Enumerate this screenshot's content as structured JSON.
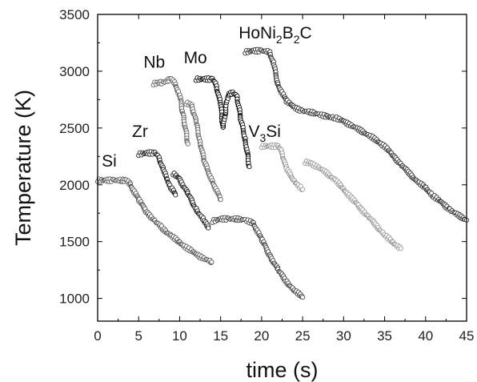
{
  "chart_data": {
    "type": "scatter",
    "title": "",
    "xlabel": "time (s)",
    "ylabel": "Temperature (K)",
    "xlim": [
      0,
      45
    ],
    "ylim": [
      800,
      3500
    ],
    "xticks": [
      "0",
      "5",
      "10",
      "15",
      "20",
      "25",
      "30",
      "35",
      "40",
      "45"
    ],
    "yticks": [
      "1000",
      "1500",
      "2000",
      "2500",
      "3000",
      "3500"
    ],
    "grid": false,
    "legend": "none",
    "marker": "open-circle",
    "annotations": [
      {
        "id": "si",
        "parts": [
          {
            "t": "Si",
            "s": false
          }
        ],
        "x": 0.5,
        "y": 2160
      },
      {
        "id": "zr",
        "parts": [
          {
            "t": "Zr",
            "s": false
          }
        ],
        "x": 4.2,
        "y": 2420
      },
      {
        "id": "nb",
        "parts": [
          {
            "t": "Nb",
            "s": false
          }
        ],
        "x": 5.6,
        "y": 3030
      },
      {
        "id": "mo",
        "parts": [
          {
            "t": "Mo",
            "s": false
          }
        ],
        "x": 10.5,
        "y": 3070
      },
      {
        "id": "honi2b2c",
        "parts": [
          {
            "t": "HoNi",
            "s": false
          },
          {
            "t": "2",
            "s": true
          },
          {
            "t": "B",
            "s": false
          },
          {
            "t": "2",
            "s": true
          },
          {
            "t": "C",
            "s": false
          }
        ],
        "x": 17.2,
        "y": 3290
      },
      {
        "id": "v3si",
        "parts": [
          {
            "t": "V",
            "s": false
          },
          {
            "t": "3",
            "s": true
          },
          {
            "t": "Si",
            "s": false
          }
        ],
        "x": 18.4,
        "y": 2420
      }
    ],
    "series": [
      {
        "color": "#555555",
        "points": [
          [
            0,
            2040
          ],
          [
            1,
            2040
          ],
          [
            2,
            2040
          ],
          [
            3,
            2040
          ],
          [
            3.5,
            2040
          ],
          [
            4,
            2000
          ],
          [
            5,
            1870
          ],
          [
            6,
            1760
          ],
          [
            7,
            1680
          ],
          [
            8,
            1610
          ],
          [
            9,
            1550
          ],
          [
            10,
            1490
          ],
          [
            11,
            1440
          ],
          [
            12,
            1390
          ],
          [
            13,
            1350
          ],
          [
            13.9,
            1320
          ]
        ]
      },
      {
        "color": "#444444",
        "points": [
          [
            14,
            1680
          ],
          [
            15,
            1700
          ],
          [
            16,
            1700
          ],
          [
            17,
            1700
          ],
          [
            18,
            1690
          ],
          [
            19,
            1660
          ],
          [
            20,
            1520
          ],
          [
            21,
            1380
          ],
          [
            22,
            1250
          ],
          [
            23,
            1150
          ],
          [
            24,
            1070
          ],
          [
            25,
            1010
          ]
        ]
      },
      {
        "color": "#222222",
        "points": [
          [
            5,
            2270
          ],
          [
            6,
            2280
          ],
          [
            7,
            2280
          ],
          [
            7.5,
            2240
          ],
          [
            8,
            2130
          ],
          [
            8.5,
            2040
          ],
          [
            9,
            1970
          ],
          [
            9.5,
            1910
          ]
        ]
      },
      {
        "color": "#222222",
        "points": [
          [
            9.2,
            2100
          ],
          [
            10,
            2050
          ],
          [
            11,
            1920
          ],
          [
            12,
            1790
          ],
          [
            13,
            1680
          ],
          [
            13.5,
            1620
          ]
        ]
      },
      {
        "color": "#666666",
        "points": [
          [
            6.8,
            2890
          ],
          [
            7.5,
            2900
          ],
          [
            8,
            2900
          ],
          [
            8.5,
            2920
          ],
          [
            9,
            2930
          ],
          [
            9.5,
            2880
          ],
          [
            10,
            2790
          ],
          [
            10.5,
            2590
          ],
          [
            11,
            2360
          ]
        ]
      },
      {
        "color": "#666666",
        "points": [
          [
            10.8,
            2720
          ],
          [
            11.5,
            2700
          ],
          [
            12,
            2550
          ],
          [
            12.5,
            2380
          ],
          [
            13,
            2200
          ],
          [
            14,
            2030
          ],
          [
            15,
            1870
          ]
        ]
      },
      {
        "color": "#111111",
        "points": [
          [
            12,
            2930
          ],
          [
            13,
            2930
          ],
          [
            14,
            2930
          ],
          [
            14.5,
            2870
          ],
          [
            15,
            2700
          ],
          [
            15.3,
            2500
          ],
          [
            15.8,
            2750
          ],
          [
            16,
            2800
          ],
          [
            16.5,
            2810
          ],
          [
            17,
            2780
          ],
          [
            17.5,
            2560
          ],
          [
            18,
            2400
          ],
          [
            18.5,
            2160
          ]
        ]
      },
      {
        "color": "#999999",
        "points": [
          [
            20,
            2340
          ],
          [
            21,
            2340
          ],
          [
            22,
            2340
          ],
          [
            22.5,
            2280
          ],
          [
            23,
            2140
          ],
          [
            24,
            2030
          ],
          [
            25,
            1960
          ]
        ]
      },
      {
        "color": "#999999",
        "points": [
          [
            25.3,
            2200
          ],
          [
            26,
            2190
          ],
          [
            27,
            2150
          ],
          [
            28,
            2100
          ],
          [
            29,
            2040
          ],
          [
            30,
            1960
          ],
          [
            31,
            1880
          ],
          [
            32,
            1800
          ],
          [
            33,
            1720
          ],
          [
            34,
            1640
          ],
          [
            35,
            1560
          ],
          [
            36,
            1490
          ],
          [
            37,
            1440
          ]
        ]
      },
      {
        "color": "#333333",
        "points": [
          [
            18,
            3170
          ],
          [
            19,
            3180
          ],
          [
            20,
            3180
          ],
          [
            21,
            3170
          ],
          [
            21.5,
            3050
          ],
          [
            22,
            2880
          ],
          [
            23,
            2740
          ],
          [
            24,
            2680
          ],
          [
            25,
            2650
          ],
          [
            26,
            2640
          ],
          [
            27,
            2620
          ],
          [
            28,
            2600
          ],
          [
            29,
            2590
          ],
          [
            30,
            2560
          ],
          [
            31,
            2520
          ],
          [
            32,
            2480
          ],
          [
            33,
            2440
          ],
          [
            34,
            2390
          ],
          [
            35,
            2340
          ],
          [
            36,
            2260
          ],
          [
            37,
            2180
          ],
          [
            38,
            2100
          ],
          [
            39,
            2030
          ],
          [
            40,
            1970
          ],
          [
            41,
            1900
          ],
          [
            42,
            1840
          ],
          [
            43,
            1780
          ],
          [
            44,
            1730
          ],
          [
            45,
            1690
          ]
        ]
      }
    ]
  }
}
